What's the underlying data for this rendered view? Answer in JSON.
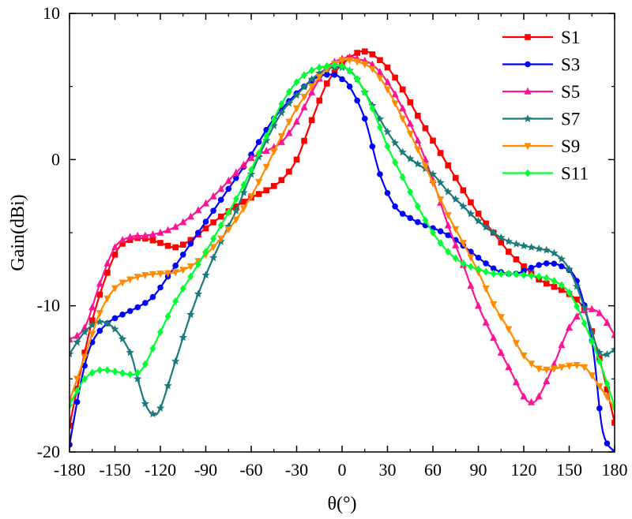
{
  "chart_data": {
    "type": "line",
    "title": "",
    "xlabel": "θ(°)",
    "ylabel": "Gain(dBi)",
    "xlim": [
      -180,
      180
    ],
    "ylim": [
      -20,
      10
    ],
    "xticks": [
      -180,
      -150,
      -120,
      -90,
      -60,
      -30,
      0,
      30,
      60,
      90,
      120,
      150,
      180
    ],
    "yticks": [
      -20,
      -10,
      0,
      10
    ],
    "grid": false,
    "legend_position": "top-right",
    "series": [
      {
        "name": "S1",
        "color": "#ff0000",
        "marker": "square",
        "x": [
          -180,
          -165,
          -150,
          -140,
          -130,
          -120,
          -110,
          -100,
          -90,
          -80,
          -70,
          -60,
          -50,
          -40,
          -30,
          -20,
          -10,
          0,
          10,
          15,
          20,
          30,
          40,
          50,
          60,
          70,
          80,
          90,
          100,
          110,
          120,
          130,
          140,
          150,
          160,
          170,
          180
        ],
        "y": [
          -18.2,
          -11.0,
          -6.5,
          -5.5,
          -5.4,
          -5.7,
          -6.0,
          -5.5,
          -4.7,
          -3.9,
          -3.2,
          -2.6,
          -2.1,
          -1.4,
          0.0,
          2.7,
          5.2,
          6.5,
          7.3,
          7.4,
          7.2,
          6.3,
          4.8,
          3.0,
          1.3,
          -0.4,
          -2.1,
          -3.7,
          -5.0,
          -6.3,
          -7.3,
          -8.2,
          -8.7,
          -9.2,
          -10.3,
          -13.6,
          -18.0
        ]
      },
      {
        "name": "S3",
        "color": "#0000ff",
        "marker": "circle",
        "x": [
          -180,
          -172,
          -165,
          -155,
          -145,
          -135,
          -125,
          -115,
          -105,
          -95,
          -85,
          -75,
          -65,
          -55,
          -45,
          -35,
          -25,
          -15,
          -5,
          0,
          5,
          15,
          25,
          35,
          45,
          55,
          65,
          75,
          85,
          95,
          105,
          115,
          125,
          135,
          145,
          155,
          165,
          172,
          180
        ],
        "y": [
          -19.5,
          -15.0,
          -12.5,
          -11.2,
          -10.6,
          -10.1,
          -9.4,
          -8.0,
          -6.5,
          -5.0,
          -3.5,
          -2.0,
          -0.5,
          1.2,
          2.8,
          4.0,
          5.0,
          5.7,
          5.8,
          5.5,
          5.0,
          2.8,
          -1.0,
          -3.2,
          -4.0,
          -4.5,
          -4.9,
          -5.5,
          -6.3,
          -7.1,
          -7.7,
          -7.8,
          -7.4,
          -7.1,
          -7.3,
          -8.3,
          -12.4,
          -18.5,
          -20.0
        ]
      },
      {
        "name": "S5",
        "color": "#ff1493",
        "marker": "triangle",
        "x": [
          -180,
          -170,
          -160,
          -150,
          -140,
          -130,
          -120,
          -110,
          -100,
          -90,
          -80,
          -70,
          -60,
          -50,
          -40,
          -30,
          -20,
          -10,
          0,
          5,
          10,
          20,
          30,
          40,
          50,
          60,
          70,
          80,
          90,
          100,
          110,
          120,
          125,
          130,
          140,
          150,
          160,
          170,
          180
        ],
        "y": [
          -12.3,
          -11.5,
          -8.5,
          -6.0,
          -5.3,
          -5.2,
          -5.0,
          -4.6,
          -3.9,
          -3.0,
          -2.0,
          -0.9,
          0.1,
          0.6,
          1.2,
          2.6,
          4.6,
          6.3,
          6.9,
          7.0,
          6.9,
          6.5,
          5.3,
          3.5,
          1.3,
          -1.4,
          -4.5,
          -7.2,
          -10.0,
          -12.2,
          -14.2,
          -16.2,
          -16.6,
          -16.2,
          -14.0,
          -11.5,
          -10.3,
          -10.5,
          -12.0
        ]
      },
      {
        "name": "S7",
        "color": "#1b7a7a",
        "marker": "star",
        "x": [
          -180,
          -170,
          -160,
          -150,
          -140,
          -135,
          -130,
          -125,
          -120,
          -110,
          -100,
          -90,
          -80,
          -70,
          -60,
          -50,
          -40,
          -30,
          -20,
          -10,
          0,
          5,
          10,
          20,
          30,
          40,
          50,
          60,
          70,
          80,
          90,
          100,
          110,
          120,
          130,
          140,
          150,
          160,
          170,
          180
        ],
        "y": [
          -13.3,
          -11.8,
          -11.1,
          -11.6,
          -13.2,
          -15.0,
          -16.7,
          -17.4,
          -17.0,
          -13.8,
          -10.6,
          -7.9,
          -5.6,
          -3.5,
          -1.0,
          1.3,
          3.2,
          4.4,
          5.5,
          6.2,
          6.3,
          6.1,
          5.5,
          3.7,
          1.9,
          0.5,
          -0.3,
          -1.0,
          -2.2,
          -3.2,
          -4.2,
          -5.0,
          -5.6,
          -5.9,
          -6.1,
          -6.4,
          -7.5,
          -10.1,
          -13.2,
          -13.0
        ]
      },
      {
        "name": "S9",
        "color": "#ff8c00",
        "marker": "triangle-down",
        "x": [
          -180,
          -170,
          -160,
          -150,
          -140,
          -130,
          -120,
          -110,
          -100,
          -90,
          -80,
          -70,
          -60,
          -50,
          -40,
          -30,
          -20,
          -10,
          0,
          5,
          10,
          20,
          30,
          40,
          50,
          60,
          70,
          80,
          90,
          100,
          110,
          120,
          130,
          140,
          150,
          160,
          170,
          180
        ],
        "y": [
          -16.5,
          -13.5,
          -10.5,
          -8.8,
          -8.2,
          -7.9,
          -7.8,
          -7.7,
          -7.3,
          -6.5,
          -5.4,
          -4.1,
          -2.5,
          -0.5,
          1.6,
          3.5,
          5.0,
          6.2,
          6.8,
          6.8,
          6.7,
          6.2,
          4.8,
          2.8,
          0.7,
          -1.6,
          -3.8,
          -5.7,
          -7.7,
          -9.9,
          -11.6,
          -13.4,
          -14.3,
          -14.3,
          -14.1,
          -14.2,
          -15.5,
          -17.0
        ]
      },
      {
        "name": "S11",
        "color": "#00ff33",
        "marker": "diamond",
        "x": [
          -180,
          -170,
          -160,
          -150,
          -140,
          -135,
          -130,
          -120,
          -110,
          -100,
          -90,
          -80,
          -70,
          -60,
          -50,
          -40,
          -30,
          -20,
          -10,
          0,
          10,
          20,
          30,
          40,
          50,
          60,
          70,
          80,
          90,
          100,
          110,
          120,
          130,
          140,
          150,
          160,
          170,
          180
        ],
        "y": [
          -16.8,
          -15.0,
          -14.4,
          -14.5,
          -14.7,
          -14.6,
          -14.0,
          -11.8,
          -9.7,
          -8.0,
          -6.3,
          -4.5,
          -2.7,
          -0.7,
          1.6,
          3.8,
          5.3,
          6.1,
          6.4,
          6.4,
          5.5,
          3.5,
          0.9,
          -1.2,
          -3.2,
          -5.0,
          -6.3,
          -7.1,
          -7.5,
          -7.8,
          -7.8,
          -7.9,
          -8.0,
          -8.3,
          -9.1,
          -11.2,
          -13.8,
          -16.9
        ]
      }
    ]
  }
}
